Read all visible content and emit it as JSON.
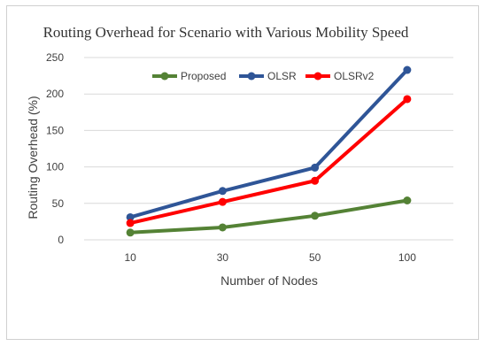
{
  "chart_data": {
    "type": "line",
    "title": "Routing Overhead for Scenario with Various Mobility Speed",
    "xlabel": "Number of Nodes",
    "ylabel": "Routing Overhead (%)",
    "categories": [
      "10",
      "30",
      "50",
      "100"
    ],
    "ylim": [
      0,
      250
    ],
    "yticks": [
      0,
      50,
      100,
      150,
      200,
      250
    ],
    "grid": true,
    "legend_position": "top",
    "series": [
      {
        "name": "Proposed",
        "color": "#548235",
        "values": [
          10,
          17,
          33,
          54
        ]
      },
      {
        "name": "OLSR",
        "color": "#2F5597",
        "values": [
          31,
          67,
          99,
          233
        ]
      },
      {
        "name": "OLSRv2",
        "color": "#FF0000",
        "values": [
          23,
          52,
          81,
          193
        ]
      }
    ]
  }
}
